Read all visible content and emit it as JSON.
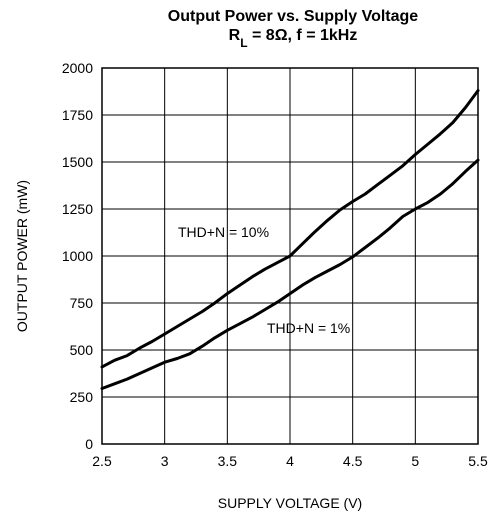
{
  "chart_data": {
    "type": "line",
    "title": "Output Power vs. Supply Voltage",
    "subtitle": {
      "r": "R",
      "r_sub": "L",
      "rest": " = 8Ω, f = 1kHz"
    },
    "xlabel": "SUPPLY VOLTAGE (V)",
    "ylabel": "OUTPUT POWER (mW)",
    "xlim": [
      2.5,
      5.5
    ],
    "ylim": [
      0,
      2000
    ],
    "xticks": [
      "2.5",
      "3",
      "3.5",
      "4",
      "4.5",
      "5",
      "5.5"
    ],
    "yticks": [
      "0",
      "250",
      "500",
      "750",
      "1000",
      "1250",
      "1500",
      "1750",
      "2000"
    ],
    "grid": true,
    "series": [
      {
        "name": "THD+N = 10%",
        "x": [
          2.5,
          2.6,
          2.7,
          2.8,
          2.9,
          3.0,
          3.1,
          3.2,
          3.3,
          3.4,
          3.5,
          3.6,
          3.7,
          3.8,
          3.9,
          4.0,
          4.1,
          4.2,
          4.3,
          4.4,
          4.5,
          4.6,
          4.7,
          4.8,
          4.9,
          5.0,
          5.1,
          5.2,
          5.3,
          5.4,
          5.5
        ],
        "values": [
          410,
          445,
          470,
          510,
          545,
          585,
          625,
          665,
          705,
          750,
          800,
          845,
          890,
          930,
          965,
          1000,
          1065,
          1130,
          1190,
          1245,
          1290,
          1330,
          1380,
          1430,
          1480,
          1540,
          1595,
          1650,
          1710,
          1790,
          1880
        ]
      },
      {
        "name": "THD+N = 1%",
        "x": [
          2.5,
          2.6,
          2.7,
          2.8,
          2.9,
          3.0,
          3.1,
          3.2,
          3.3,
          3.4,
          3.5,
          3.6,
          3.7,
          3.8,
          3.9,
          4.0,
          4.1,
          4.2,
          4.3,
          4.4,
          4.5,
          4.6,
          4.7,
          4.8,
          4.9,
          5.0,
          5.1,
          5.2,
          5.3,
          5.4,
          5.5
        ],
        "values": [
          295,
          320,
          345,
          375,
          405,
          435,
          455,
          480,
          520,
          565,
          605,
          640,
          675,
          715,
          755,
          800,
          845,
          885,
          920,
          955,
          995,
          1045,
          1095,
          1150,
          1210,
          1250,
          1285,
          1330,
          1385,
          1450,
          1510
        ]
      }
    ]
  }
}
